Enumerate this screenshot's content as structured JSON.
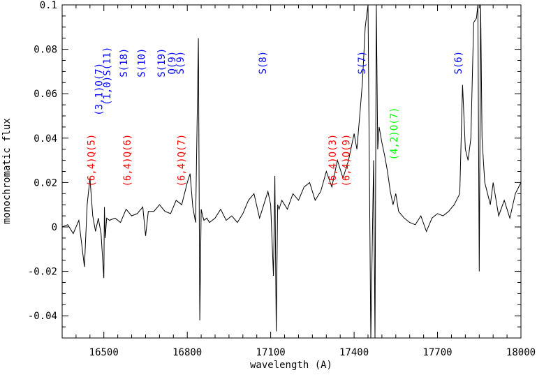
{
  "chart_data": {
    "type": "line",
    "title": "",
    "xlabel": "wavelength (A)",
    "ylabel": "monochromatic flux",
    "xlim": [
      16350,
      18000
    ],
    "ylim": [
      -0.05,
      0.1
    ],
    "x_ticks": [
      16500,
      16800,
      17100,
      17400,
      17700,
      18000
    ],
    "y_ticks": [
      -0.04,
      -0.02,
      0,
      0.02,
      0.04,
      0.06,
      0.08,
      0.1
    ],
    "x_tick_labels": [
      "16500",
      "16800",
      "17100",
      "17400",
      "17700",
      "18000"
    ],
    "y_tick_labels": [
      "-0.04",
      "-0.02",
      "0",
      "0.02",
      "0.04",
      "0.06",
      "0.08",
      "0.1"
    ],
    "grid": false,
    "line_color": "#000000",
    "series": [
      {
        "x": [
          16350,
          16370,
          16390,
          16410,
          16430,
          16440,
          16450,
          16460,
          16470,
          16480,
          16490,
          16500,
          16502,
          16505,
          16510,
          16520,
          16540,
          16560,
          16580,
          16600,
          16620,
          16640,
          16650,
          16660,
          16680,
          16700,
          16720,
          16740,
          16760,
          16780,
          16800,
          16810,
          16820,
          16830,
          16840,
          16845,
          16850,
          16855,
          16860,
          16870,
          16880,
          16900,
          16920,
          16940,
          16960,
          16980,
          17000,
          17020,
          17040,
          17060,
          17080,
          17090,
          17100,
          17110,
          17115,
          17120,
          17125,
          17130,
          17140,
          17160,
          17180,
          17200,
          17220,
          17240,
          17260,
          17280,
          17300,
          17320,
          17340,
          17360,
          17380,
          17400,
          17410,
          17420,
          17430,
          17440,
          17450,
          17460,
          17470,
          17475,
          17480,
          17485,
          17490,
          17500,
          17510,
          17520,
          17530,
          17540,
          17550,
          17560,
          17580,
          17600,
          17620,
          17640,
          17660,
          17680,
          17700,
          17720,
          17740,
          17760,
          17780,
          17790,
          17800,
          17810,
          17820,
          17830,
          17840,
          17845,
          17850,
          17855,
          17860,
          17865,
          17870,
          17880,
          17890,
          17900,
          17920,
          17940,
          17960,
          17980,
          18000
        ],
        "y": [
          0,
          0.001,
          -0.003,
          0.003,
          -0.018,
          0.01,
          0.022,
          0.005,
          -0.002,
          0.004,
          -0.003,
          -0.023,
          0.009,
          -0.005,
          0.004,
          0.003,
          0.004,
          0.002,
          0.008,
          0.005,
          0.006,
          0.009,
          -0.004,
          0.007,
          0.007,
          0.01,
          0.007,
          0.006,
          0.012,
          0.01,
          0.02,
          0.024,
          0.009,
          0.002,
          0.085,
          -0.042,
          0.008,
          0.005,
          0.003,
          0.004,
          0.002,
          0.004,
          0.008,
          0.003,
          0.005,
          0.002,
          0.006,
          0.012,
          0.015,
          0.004,
          0.012,
          0.016,
          0.01,
          -0.022,
          0.023,
          -0.047,
          0.01,
          0.008,
          0.012,
          0.008,
          0.015,
          0.012,
          0.018,
          0.02,
          0.012,
          0.016,
          0.025,
          0.018,
          0.03,
          0.022,
          0.03,
          0.042,
          0.035,
          0.05,
          0.065,
          0.09,
          0.1,
          -0.05,
          0.03,
          -0.05,
          0.1,
          0.035,
          0.045,
          0.038,
          0.032,
          0.025,
          0.016,
          0.01,
          0.015,
          0.007,
          0.004,
          0.002,
          0.001,
          0.005,
          -0.002,
          0.004,
          0.006,
          0.005,
          0.007,
          0.01,
          0.015,
          0.064,
          0.035,
          0.03,
          0.04,
          0.092,
          0.094,
          0.1,
          -0.02,
          0.1,
          0.04,
          0.03,
          0.02,
          0.015,
          0.01,
          0.02,
          0.005,
          0.012,
          0.004,
          0.015,
          0.02
        ]
      }
    ],
    "annotations": [
      {
        "text": "(6,4)Q(5)",
        "x": 16467,
        "y": 0.03,
        "color": "#ff0000"
      },
      {
        "text": "(3,1)O(7)",
        "x": 16495,
        "y": 0.062,
        "color": "#0000ff"
      },
      {
        "text": "(1,0)S(11)",
        "x": 16523,
        "y": 0.068,
        "color": "#0000ff"
      },
      {
        "text": "S(18)",
        "x": 16584,
        "y": 0.074,
        "color": "#0000ff"
      },
      {
        "text": "(6,4)Q(6)",
        "x": 16596,
        "y": 0.03,
        "color": "#ff0000"
      },
      {
        "text": "S(10)",
        "x": 16647,
        "y": 0.074,
        "color": "#0000ff"
      },
      {
        "text": "S(19)",
        "x": 16719,
        "y": 0.074,
        "color": "#0000ff"
      },
      {
        "text": "Q(9)",
        "x": 16757,
        "y": 0.074,
        "color": "#0000ff"
      },
      {
        "text": "S(9)",
        "x": 16787,
        "y": 0.074,
        "color": "#0000ff"
      },
      {
        "text": "(6,4)Q(7)",
        "x": 16791,
        "y": 0.03,
        "color": "#ff0000"
      },
      {
        "text": "S(8)",
        "x": 17083,
        "y": 0.074,
        "color": "#0000ff"
      },
      {
        "text": "(6,4)O(3)",
        "x": 17334,
        "y": 0.03,
        "color": "#ff0000"
      },
      {
        "text": "(6,4)Q(9)",
        "x": 17383,
        "y": 0.03,
        "color": "#ff0000"
      },
      {
        "text": "S(7)",
        "x": 17440,
        "y": 0.074,
        "color": "#0000ff"
      },
      {
        "text": "(4,2)O(7)",
        "x": 17556,
        "y": 0.042,
        "color": "#00ff00"
      },
      {
        "text": "S(6)",
        "x": 17787,
        "y": 0.074,
        "color": "#0000ff"
      }
    ]
  }
}
